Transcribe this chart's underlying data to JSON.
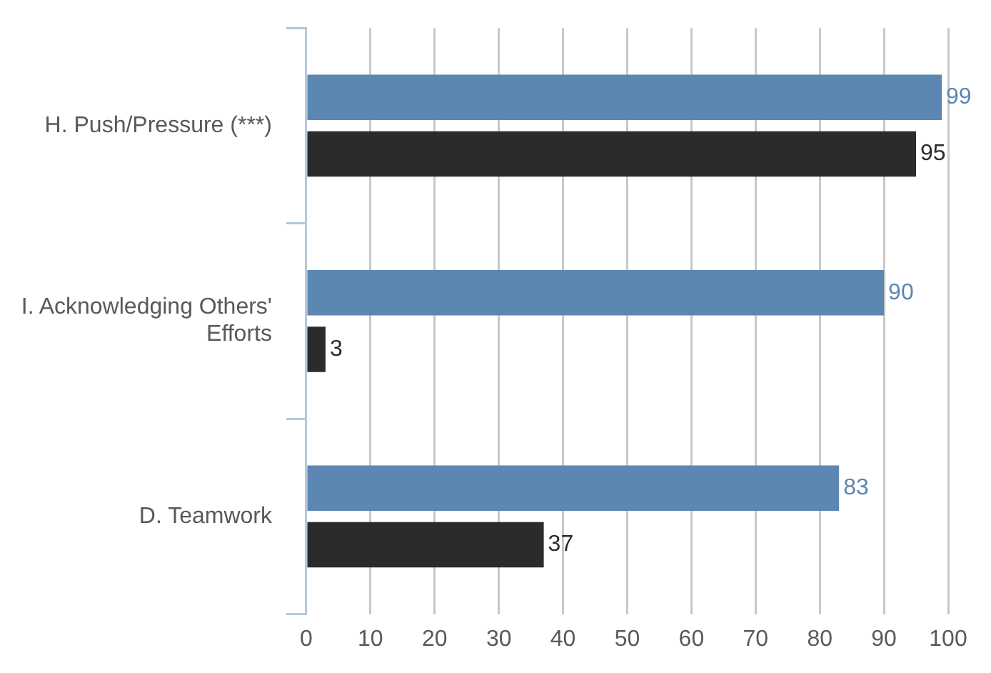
{
  "chart_data": {
    "type": "bar",
    "orientation": "horizontal",
    "categories": [
      "H. Push/Pressure (***)",
      "I. Acknowledging Others' Efforts",
      "D. Teamwork"
    ],
    "series": [
      {
        "color": "#5b87b0",
        "values": [
          99,
          90,
          83
        ]
      },
      {
        "color": "#2b2b2b",
        "values": [
          95,
          3,
          37
        ]
      }
    ],
    "xlim": [
      0,
      100
    ],
    "xticks": [
      0,
      10,
      20,
      30,
      40,
      50,
      60,
      70,
      80,
      90,
      100
    ],
    "grid": "x",
    "data_labels": true
  }
}
